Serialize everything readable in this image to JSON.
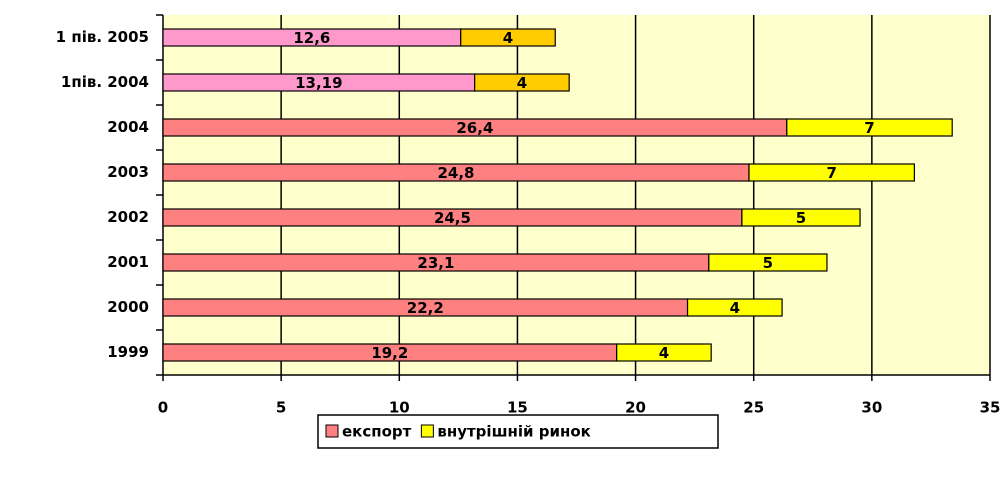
{
  "chart_data": {
    "type": "stacked-barh",
    "categories": [
      "1 пів. 2005",
      "1пів. 2004",
      "2004",
      "2003",
      "2002",
      "2001",
      "2000",
      "1999"
    ],
    "series": [
      {
        "name": "експорт",
        "color": "#ff8080",
        "colors": [
          "#ff99cc",
          "#ff99cc",
          "#ff8080",
          "#ff8080",
          "#ff8080",
          "#ff8080",
          "#ff8080",
          "#ff8080"
        ],
        "values": [
          12.6,
          13.19,
          26.4,
          24.8,
          24.5,
          23.1,
          22.2,
          19.2
        ],
        "value_labels": [
          "12,6",
          "13,19",
          "26,4",
          "24,8",
          "24,5",
          "23,1",
          "22,2",
          "19,2"
        ]
      },
      {
        "name": "внутрішній ринок",
        "color": "#ffff00",
        "colors": [
          "#ffcc00",
          "#ffcc00",
          "#ffff00",
          "#ffff00",
          "#ffff00",
          "#ffff00",
          "#ffff00",
          "#ffff00"
        ],
        "values": [
          4,
          4,
          7,
          7,
          5,
          5,
          4,
          4
        ]
      }
    ],
    "xlim": [
      0,
      35
    ],
    "xticks": [
      0,
      5,
      10,
      15,
      20,
      25,
      30,
      35
    ],
    "grid": true,
    "background": "#ffffcc",
    "legend": "bottom"
  }
}
